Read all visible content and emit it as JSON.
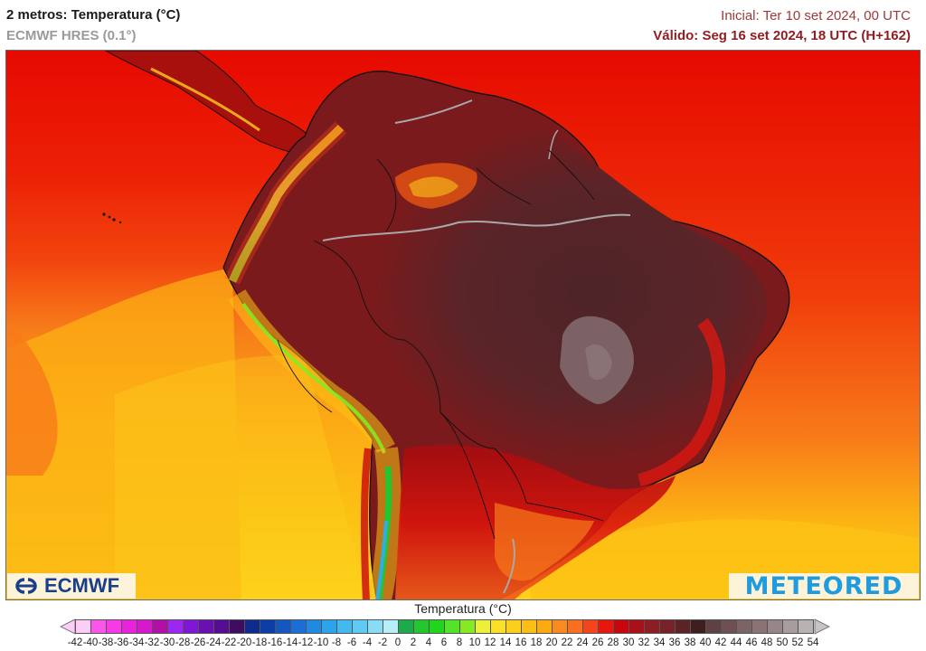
{
  "header": {
    "title": "2 metros: Temperatura (°C)",
    "subtitle": "ECMWF HRES (0.1°)",
    "initial": "Inicial: Ter 10 set 2024, 00 UTC",
    "valid": "Válido: Seg 16 set 2024, 18 UTC (H+162)"
  },
  "map": {
    "region": "South America",
    "variable": "2 m temperature",
    "colors": {
      "ocean_north": "#e60a00",
      "ocean_mid": "#f03a0a",
      "ocean_orange": "#f77a1a",
      "ocean_south": "#fcb314",
      "ocean_yellow": "#fdd21c",
      "land_hot": "#7a1c1c",
      "land_hottest": "#4a2226",
      "highland_grey": "#7e6668",
      "andes_green": "#33c733",
      "andes_blue": "#39a9e3",
      "river": "#a8a8a8",
      "border": "#111111"
    }
  },
  "logos": {
    "left": "ECMWF",
    "right": "METEORED"
  },
  "colorbar": {
    "title": "Temperatura (°C)",
    "labels": [
      "-42",
      "-40",
      "-38",
      "-36",
      "-34",
      "-32",
      "-30",
      "-28",
      "-26",
      "-24",
      "-22",
      "-20",
      "-18",
      "-16",
      "-14",
      "-12",
      "-10",
      "-8",
      "-6",
      "-4",
      "-2",
      "0",
      "2",
      "4",
      "6",
      "8",
      "10",
      "12",
      "14",
      "16",
      "18",
      "20",
      "22",
      "24",
      "26",
      "28",
      "30",
      "32",
      "34",
      "36",
      "38",
      "40",
      "42",
      "44",
      "46",
      "48",
      "50",
      "52",
      "54"
    ],
    "colors": [
      "#fccdf6",
      "#fb55ea",
      "#f53ae6",
      "#ea22dc",
      "#d619cc",
      "#b10fa5",
      "#9b27f0",
      "#8016d6",
      "#6a0fb0",
      "#560c93",
      "#3e0d62",
      "#0d2c8d",
      "#0c3ea6",
      "#1457c0",
      "#1b6fd4",
      "#1f8ae0",
      "#2ba4ea",
      "#42b9f0",
      "#5fcaf2",
      "#88dcf5",
      "#b7eef8",
      "#1dab4a",
      "#23c62e",
      "#1fd61d",
      "#54e22a",
      "#86ea22",
      "#ecf03a",
      "#fbe027",
      "#fbd01c",
      "#fcc014",
      "#fbaa12",
      "#f98a1f",
      "#f86f1f",
      "#f5441b",
      "#e8170e",
      "#c8060c",
      "#a9111a",
      "#8c1d22",
      "#752328",
      "#5c2226",
      "#3f1e20",
      "#5f4144",
      "#6e5052",
      "#7c6365",
      "#8a7374",
      "#978687",
      "#a89c9c",
      "#b8b2b2"
    ]
  }
}
